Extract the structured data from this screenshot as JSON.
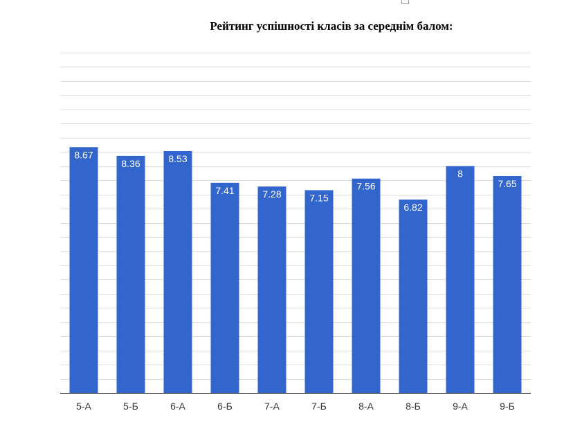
{
  "chart_data": {
    "type": "bar",
    "title": "Рейтинг успішності класів за середнім балом:",
    "xlabel": "",
    "ylabel": "",
    "categories": [
      "5-А",
      "5-Б",
      "6-А",
      "6-Б",
      "7-А",
      "7-Б",
      "8-А",
      "8-Б",
      "9-А",
      "9-Б"
    ],
    "values": [
      8.67,
      8.36,
      8.53,
      7.41,
      7.28,
      7.15,
      7.56,
      6.82,
      8,
      7.65
    ],
    "data_labels": [
      "8.67",
      "8.36",
      "8.53",
      "7.41",
      "7.28",
      "7.15",
      "7.56",
      "6.82",
      "8",
      "7.65"
    ],
    "ylim": [
      0,
      12
    ],
    "grid": true,
    "legend": "none",
    "bar_color": "#3366cc",
    "gridline_color": "#dddddd",
    "axis_color": "#333333"
  }
}
